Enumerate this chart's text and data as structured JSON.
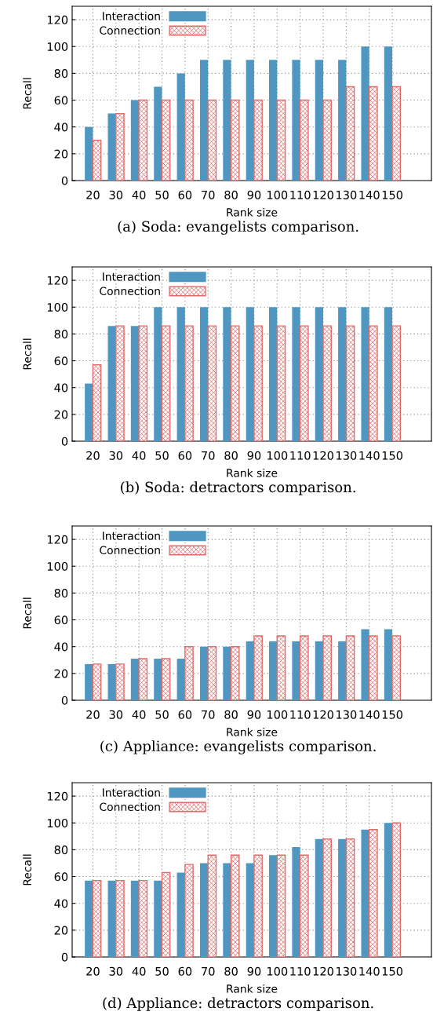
{
  "chart_data": [
    {
      "type": "bar",
      "xlabel": "Rank size",
      "ylabel": "Recall",
      "categories": [
        "20",
        "30",
        "40",
        "50",
        "60",
        "70",
        "80",
        "90",
        "100",
        "110",
        "120",
        "130",
        "140",
        "150"
      ],
      "ylim": [
        0,
        130
      ],
      "yticks": [
        0,
        20,
        40,
        60,
        80,
        100,
        120
      ],
      "grid": true,
      "legend": "top left",
      "annotations": [
        "(a) Soda: evangelists comparison."
      ],
      "series": [
        {
          "name": "Interaction",
          "color": "#4f97c0",
          "values": [
            40,
            50,
            60,
            70,
            80,
            90,
            90,
            90,
            90,
            90,
            90,
            90,
            100,
            100
          ]
        },
        {
          "name": "Connection",
          "color": "#e46a6a",
          "values": [
            30,
            50,
            60,
            60,
            60,
            60,
            60,
            60,
            60,
            60,
            60,
            70,
            70,
            70
          ]
        }
      ]
    },
    {
      "type": "bar",
      "xlabel": "Rank size",
      "ylabel": "Recall",
      "categories": [
        "20",
        "30",
        "40",
        "50",
        "60",
        "70",
        "80",
        "90",
        "100",
        "110",
        "120",
        "130",
        "140",
        "150"
      ],
      "ylim": [
        0,
        130
      ],
      "yticks": [
        0,
        20,
        40,
        60,
        80,
        100,
        120
      ],
      "grid": true,
      "legend": "top left",
      "annotations": [
        "(b) Soda: detractors comparison."
      ],
      "series": [
        {
          "name": "Interaction",
          "color": "#4f97c0",
          "values": [
            43,
            86,
            86,
            100,
            100,
            100,
            100,
            100,
            100,
            100,
            100,
            100,
            100,
            100
          ]
        },
        {
          "name": "Connection",
          "color": "#e46a6a",
          "values": [
            57,
            86,
            86,
            86,
            86,
            86,
            86,
            86,
            86,
            86,
            86,
            86,
            86,
            86
          ]
        }
      ]
    },
    {
      "type": "bar",
      "xlabel": "Rank size",
      "ylabel": "Recall",
      "categories": [
        "20",
        "30",
        "40",
        "50",
        "60",
        "70",
        "80",
        "90",
        "100",
        "110",
        "120",
        "130",
        "140",
        "150"
      ],
      "ylim": [
        0,
        130
      ],
      "yticks": [
        0,
        20,
        40,
        60,
        80,
        100,
        120
      ],
      "grid": true,
      "legend": "top left",
      "annotations": [
        "(c) Appliance: evangelists comparison."
      ],
      "series": [
        {
          "name": "Interaction",
          "color": "#4f97c0",
          "values": [
            27,
            27,
            31,
            31,
            31,
            40,
            40,
            44,
            44,
            44,
            44,
            44,
            53,
            53
          ]
        },
        {
          "name": "Connection",
          "color": "#e46a6a",
          "values": [
            27,
            27,
            31,
            31,
            40,
            40,
            40,
            48,
            48,
            48,
            48,
            48,
            48,
            48
          ]
        }
      ]
    },
    {
      "type": "bar",
      "xlabel": "Rank size",
      "ylabel": "Recall",
      "categories": [
        "20",
        "30",
        "40",
        "50",
        "60",
        "70",
        "80",
        "90",
        "100",
        "110",
        "120",
        "130",
        "140",
        "150"
      ],
      "ylim": [
        0,
        130
      ],
      "yticks": [
        0,
        20,
        40,
        60,
        80,
        100,
        120
      ],
      "grid": true,
      "legend": "top left",
      "annotations": [
        "(d) Appliance: detractors comparison."
      ],
      "series": [
        {
          "name": "Interaction",
          "color": "#4f97c0",
          "values": [
            57,
            57,
            57,
            57,
            63,
            70,
            70,
            70,
            76,
            82,
            88,
            88,
            95,
            100
          ]
        },
        {
          "name": "Connection",
          "color": "#e46a6a",
          "values": [
            57,
            57,
            57,
            63,
            69,
            76,
            76,
            76,
            76,
            76,
            88,
            88,
            95,
            100
          ]
        }
      ]
    }
  ]
}
